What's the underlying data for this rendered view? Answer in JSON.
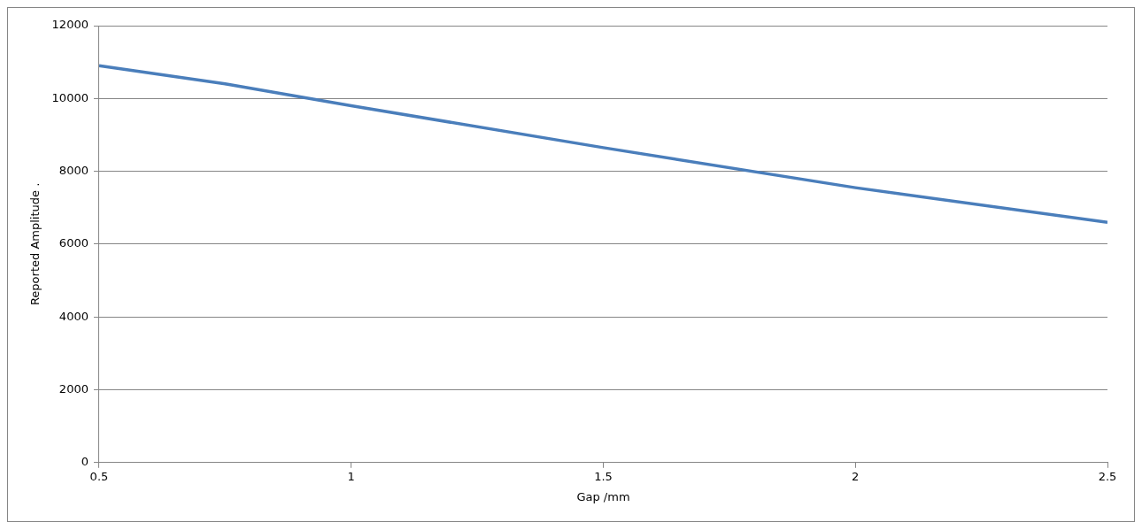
{
  "chart_data": {
    "type": "line",
    "xlabel": "Gap /mm",
    "ylabel": "Reported Amplitude .",
    "x": [
      0.5,
      0.75,
      1,
      1.5,
      2,
      2.5
    ],
    "series": [
      {
        "color": "#4a7ebb",
        "values": [
          10900,
          10400,
          9800,
          8650,
          7550,
          6600
        ]
      }
    ],
    "xlim": [
      0.5,
      2.5
    ],
    "xticks": [
      0.5,
      1,
      1.5,
      2,
      2.5
    ],
    "ylim": [
      0,
      12000
    ],
    "yticks": [
      0,
      2000,
      4000,
      6000,
      8000,
      10000,
      12000
    ],
    "grid": "y",
    "legend": false,
    "marker": "none",
    "line_style": "solid"
  }
}
